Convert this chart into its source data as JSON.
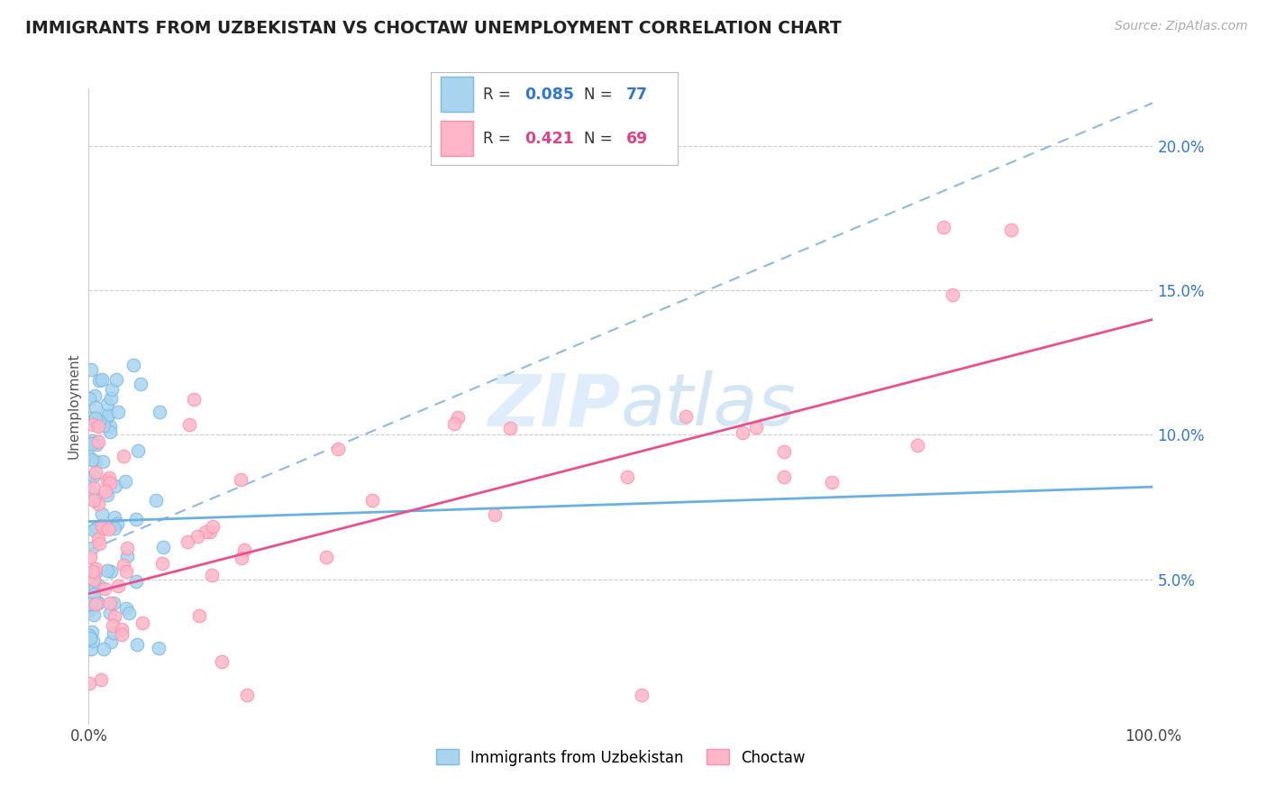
{
  "title": "IMMIGRANTS FROM UZBEKISTAN VS CHOCTAW UNEMPLOYMENT CORRELATION CHART",
  "source_text": "Source: ZipAtlas.com",
  "ylabel": "Unemployment",
  "watermark_zip": "ZIP",
  "watermark_atlas": "atlas",
  "legend_r1": "0.085",
  "legend_n1": "77",
  "legend_r2": "0.421",
  "legend_n2": "69",
  "color_blue": "#a8d4f0",
  "color_pink": "#ffb6c8",
  "color_blue_edge": "#7ab8e0",
  "color_pink_edge": "#ff8faa",
  "trendline_blue_color": "#6bb0e0",
  "trendline_pink_color": "#e85090",
  "trendline_dashed_color": "#90b8e0",
  "label_color_blue": "#3377cc",
  "label_color_pink": "#dd4488",
  "right_axis_color": "#3377cc",
  "xmin": 0.0,
  "xmax": 1.0,
  "ymin": 0.0,
  "ymax": 0.22,
  "ytick_vals": [
    0.0,
    0.05,
    0.1,
    0.15,
    0.2
  ],
  "ytick_labels_right": [
    "",
    "5.0%",
    "10.0%",
    "15.0%",
    "20.0%"
  ]
}
